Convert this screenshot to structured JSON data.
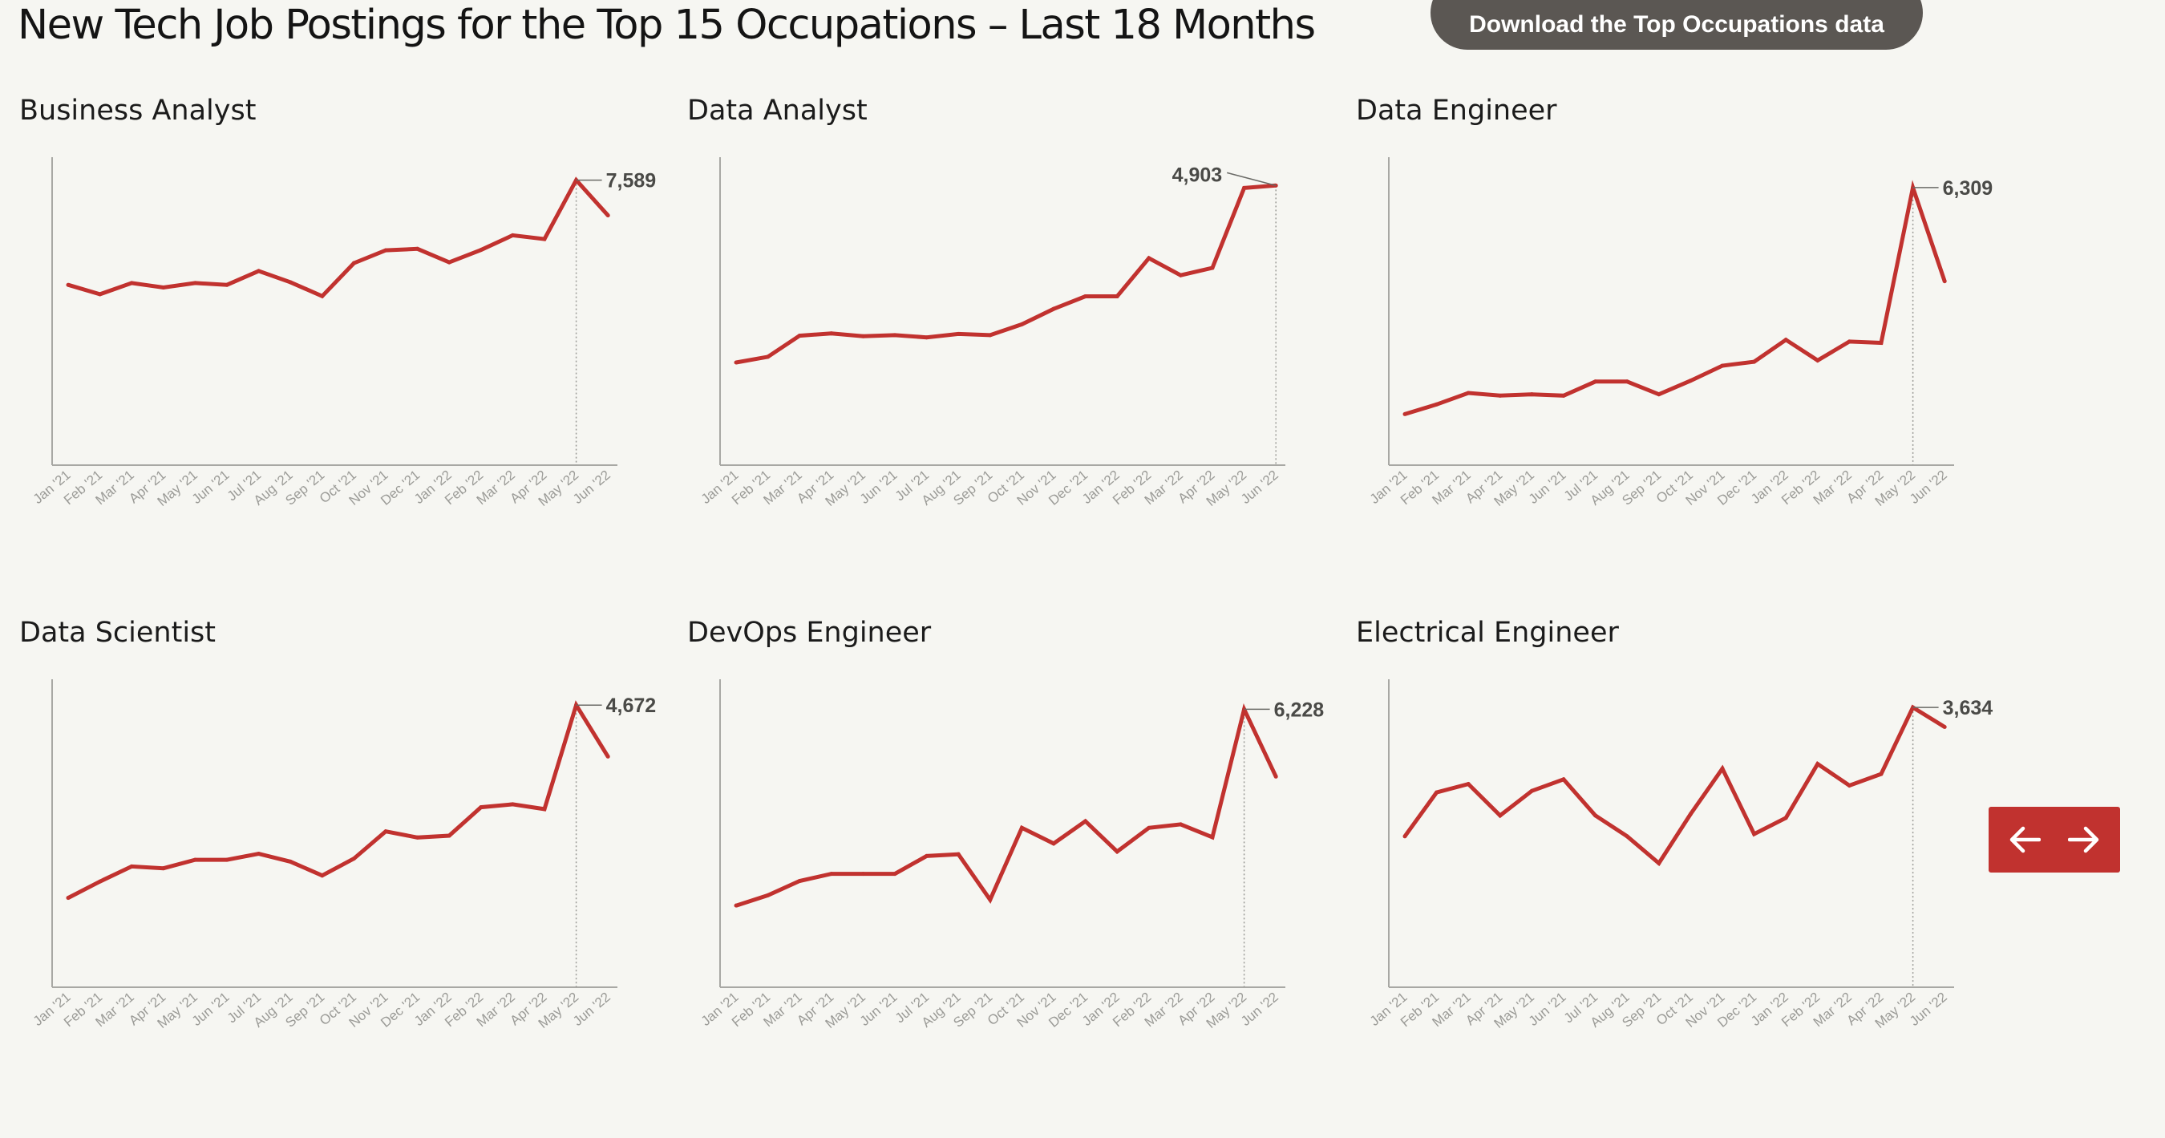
{
  "page": {
    "title": "New Tech Job Postings for the Top 15 Occupations – Last 18 Months",
    "download_label": "Download the Top Occupations data"
  },
  "pager": {
    "prev_icon": "arrow-left-icon",
    "next_icon": "arrow-right-icon"
  },
  "colors": {
    "line": "#c1322f",
    "axis": "#a8a8a4",
    "button_dark": "#5b5753",
    "pager_bg": "#c1322f"
  },
  "chart_data": [
    {
      "type": "line",
      "title": "Business Analyst",
      "categories": [
        "Jan '21",
        "Feb '21",
        "Mar '21",
        "Apr '21",
        "May '21",
        "Jun '21",
        "Jul '21",
        "Aug '21",
        "Sep '21",
        "Oct '21",
        "Nov '21",
        "Dec '21",
        "Jan '22",
        "Feb '22",
        "Mar '22",
        "Apr '22",
        "May '22",
        "Jun '22"
      ],
      "values": [
        4800,
        4550,
        4850,
        4730,
        4850,
        4800,
        5170,
        4870,
        4500,
        5380,
        5720,
        5760,
        5400,
        5730,
        6120,
        6020,
        7589,
        6650
      ],
      "ylim": [
        0,
        8200
      ],
      "annotation": {
        "label": "7,589",
        "index": 16
      }
    },
    {
      "type": "line",
      "title": "Data Analyst",
      "categories": [
        "Jan '21",
        "Feb '21",
        "Mar '21",
        "Apr '21",
        "May '21",
        "Jun '21",
        "Jul '21",
        "Aug '21",
        "Sep '21",
        "Oct '21",
        "Nov '21",
        "Dec '21",
        "Jan '22",
        "Feb '22",
        "Mar '22",
        "Apr '22",
        "May '22",
        "Jun '22"
      ],
      "values": [
        1800,
        1900,
        2270,
        2310,
        2260,
        2280,
        2240,
        2300,
        2280,
        2470,
        2740,
        2960,
        2960,
        3630,
        3330,
        3460,
        4860,
        4903
      ],
      "ylim": [
        0,
        5400
      ],
      "annotation": {
        "label": "4,903",
        "index": 17
      }
    },
    {
      "type": "line",
      "title": "Data Engineer",
      "categories": [
        "Jan '21",
        "Feb '21",
        "Mar '21",
        "Apr '21",
        "May '21",
        "Jun '21",
        "Jul '21",
        "Aug '21",
        "Sep '21",
        "Oct '21",
        "Nov '21",
        "Dec '21",
        "Jan '22",
        "Feb '22",
        "Mar '22",
        "Apr '22",
        "May '22",
        "Jun '22"
      ],
      "values": [
        1160,
        1380,
        1640,
        1580,
        1610,
        1580,
        1900,
        1900,
        1610,
        1920,
        2260,
        2350,
        2850,
        2380,
        2810,
        2780,
        6309,
        4180
      ],
      "ylim": [
        0,
        7000
      ],
      "annotation": {
        "label": "6,309",
        "index": 16
      }
    },
    {
      "type": "line",
      "title": "Data Scientist",
      "categories": [
        "Jan '21",
        "Feb '21",
        "Mar '21",
        "Apr '21",
        "May '21",
        "Jun '21",
        "Jul '21",
        "Aug '21",
        "Sep '21",
        "Oct '21",
        "Nov '21",
        "Dec '21",
        "Jan '22",
        "Feb '22",
        "Mar '22",
        "Apr '22",
        "May '22",
        "Jun '22"
      ],
      "values": [
        1480,
        1750,
        2000,
        1970,
        2110,
        2110,
        2210,
        2080,
        1850,
        2130,
        2580,
        2480,
        2510,
        2980,
        3030,
        2950,
        4672,
        3820
      ],
      "ylim": [
        0,
        5100
      ],
      "annotation": {
        "label": "4,672",
        "index": 16
      }
    },
    {
      "type": "line",
      "title": "DevOps Engineer",
      "categories": [
        "Jan '21",
        "Feb '21",
        "Mar '21",
        "Apr '21",
        "May '21",
        "Jun '21",
        "Jul '21",
        "Aug '21",
        "Sep '21",
        "Oct '21",
        "Nov '21",
        "Dec '21",
        "Jan '22",
        "Feb '22",
        "Mar '22",
        "Apr '22",
        "May '22",
        "Jun '22"
      ],
      "values": [
        1830,
        2060,
        2380,
        2540,
        2540,
        2540,
        2940,
        2980,
        1960,
        3570,
        3220,
        3720,
        3040,
        3570,
        3650,
        3360,
        6228,
        4720
      ],
      "ylim": [
        0,
        6900
      ],
      "annotation": {
        "label": "6,228",
        "index": 16
      }
    },
    {
      "type": "line",
      "title": "Electrical Engineer",
      "categories": [
        "Jan '21",
        "Feb '21",
        "Mar '21",
        "Apr '21",
        "May '21",
        "Jun '21",
        "Jul '21",
        "Aug '21",
        "Sep '21",
        "Oct '21",
        "Nov '21",
        "Dec '21",
        "Jan '22",
        "Feb '22",
        "Mar '22",
        "Apr '22",
        "May '22",
        "Jun '22"
      ],
      "values": [
        1960,
        2530,
        2640,
        2230,
        2550,
        2700,
        2230,
        1960,
        1610,
        2250,
        2840,
        1990,
        2200,
        2900,
        2620,
        2770,
        3634,
        3380
      ],
      "ylim": [
        0,
        4000
      ],
      "annotation": {
        "label": "3,634",
        "index": 16
      }
    }
  ]
}
